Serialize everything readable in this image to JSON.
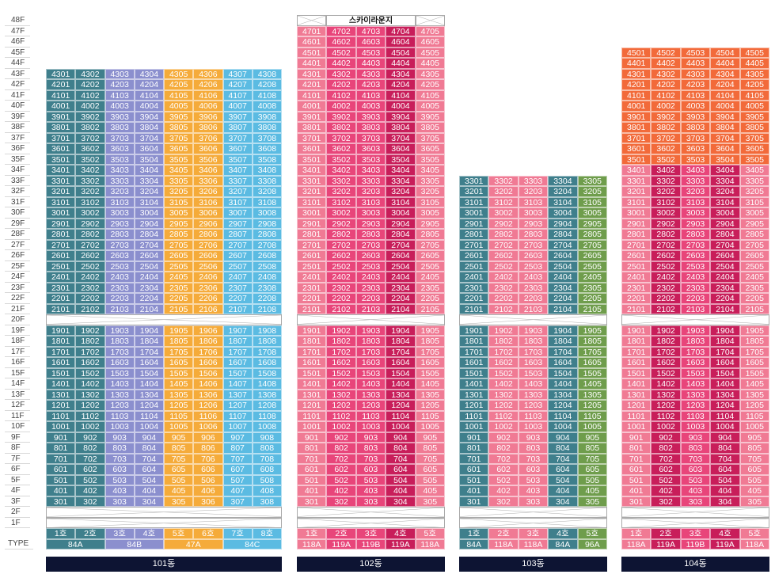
{
  "floors": [
    "48F",
    "47F",
    "46F",
    "45F",
    "44F",
    "43F",
    "42F",
    "41F",
    "40F",
    "39F",
    "38F",
    "37F",
    "36F",
    "35F",
    "34F",
    "33F",
    "32F",
    "31F",
    "30F",
    "29F",
    "28F",
    "27F",
    "26F",
    "25F",
    "24F",
    "23F",
    "22F",
    "21F",
    "20F",
    "19F",
    "18F",
    "17F",
    "16F",
    "15F",
    "14F",
    "13F",
    "12F",
    "11F",
    "10F",
    "9F",
    "8F",
    "7F",
    "6F",
    "5F",
    "4F",
    "3F",
    "2F",
    "1F"
  ],
  "type_label": "TYPE",
  "sky_lounge": "스카이라운지",
  "buildings": [
    {
      "name": "101동",
      "max_floor": 43,
      "units": [
        {
          "ho": "1호",
          "color": "#3f7f8c"
        },
        {
          "ho": "2호",
          "color": "#3f7f8c"
        },
        {
          "ho": "3호",
          "color": "#8b8fce"
        },
        {
          "ho": "4호",
          "color": "#8b8fce"
        },
        {
          "ho": "5호",
          "color": "#f5ab3a"
        },
        {
          "ho": "6호",
          "color": "#f5ab3a"
        },
        {
          "ho": "7호",
          "color": "#5bbbe2"
        },
        {
          "ho": "8호",
          "color": "#5bbbe2"
        }
      ],
      "types": [
        {
          "label": "84A",
          "span": 2,
          "color": "#3f7f8c"
        },
        {
          "label": "84B",
          "span": 2,
          "color": "#8b8fce"
        },
        {
          "label": "47A",
          "span": 2,
          "color": "#f5ab3a"
        },
        {
          "label": "84C",
          "span": 2,
          "color": "#5bbbe2"
        }
      ]
    },
    {
      "name": "102동",
      "max_floor": 47,
      "sky": true,
      "units": [
        {
          "ho": "1호",
          "color": "#f07a94"
        },
        {
          "ho": "2호",
          "color": "#e8457a"
        },
        {
          "ho": "3호",
          "color": "#e8457a"
        },
        {
          "ho": "4호",
          "color": "#c81e5a"
        },
        {
          "ho": "5호",
          "color": "#f07a94"
        }
      ],
      "types": [
        {
          "label": "118A",
          "span": 1,
          "color": "#f07a94"
        },
        {
          "label": "119A",
          "span": 1,
          "color": "#e8457a"
        },
        {
          "label": "119B",
          "span": 1,
          "color": "#e8457a"
        },
        {
          "label": "119A",
          "span": 1,
          "color": "#c81e5a"
        },
        {
          "label": "118A",
          "span": 1,
          "color": "#f07a94"
        }
      ]
    },
    {
      "name": "103동",
      "max_floor": 33,
      "units": [
        {
          "ho": "1호",
          "color": "#3f7f8c"
        },
        {
          "ho": "2호",
          "color": "#f07a94"
        },
        {
          "ho": "3호",
          "color": "#f07a94"
        },
        {
          "ho": "4호",
          "color": "#3f7f8c"
        },
        {
          "ho": "5호",
          "color": "#6f9d4c"
        }
      ],
      "types": [
        {
          "label": "84A",
          "span": 1,
          "color": "#3f7f8c"
        },
        {
          "label": "118A",
          "span": 1,
          "color": "#f07a94"
        },
        {
          "label": "118A",
          "span": 1,
          "color": "#f07a94"
        },
        {
          "label": "84A",
          "span": 1,
          "color": "#3f7f8c"
        },
        {
          "label": "96A",
          "span": 1,
          "color": "#6f9d4c"
        }
      ]
    },
    {
      "name": "104동",
      "max_floor": 45,
      "top_floors": [
        35,
        45
      ],
      "top_color": "#f26a3a",
      "units": [
        {
          "ho": "1호",
          "color": "#f07a94"
        },
        {
          "ho": "2호",
          "color": "#c81e5a"
        },
        {
          "ho": "3호",
          "color": "#e8457a"
        },
        {
          "ho": "4호",
          "color": "#c81e5a"
        },
        {
          "ho": "5호",
          "color": "#f07a94"
        }
      ],
      "types": [
        {
          "label": "118A",
          "span": 1,
          "color": "#f07a94"
        },
        {
          "label": "119A",
          "span": 1,
          "color": "#c81e5a"
        },
        {
          "label": "119B",
          "span": 1,
          "color": "#e8457a"
        },
        {
          "label": "119A",
          "span": 1,
          "color": "#c81e5a"
        },
        {
          "label": "118A",
          "span": 1,
          "color": "#f07a94"
        }
      ]
    }
  ]
}
